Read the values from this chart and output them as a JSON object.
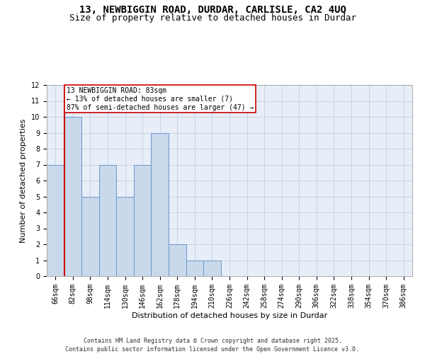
{
  "title_line1": "13, NEWBIGGIN ROAD, DURDAR, CARLISLE, CA2 4UQ",
  "title_line2": "Size of property relative to detached houses in Durdar",
  "xlabel": "Distribution of detached houses by size in Durdar",
  "ylabel": "Number of detached properties",
  "bin_labels": [
    "66sqm",
    "82sqm",
    "98sqm",
    "114sqm",
    "130sqm",
    "146sqm",
    "162sqm",
    "178sqm",
    "194sqm",
    "210sqm",
    "226sqm",
    "242sqm",
    "258sqm",
    "274sqm",
    "290sqm",
    "306sqm",
    "322sqm",
    "338sqm",
    "354sqm",
    "370sqm",
    "386sqm"
  ],
  "bin_values": [
    7,
    10,
    5,
    7,
    5,
    7,
    9,
    2,
    1,
    1,
    0,
    0,
    0,
    0,
    0,
    0,
    0,
    0,
    0,
    0,
    0
  ],
  "bar_color": "#c9d9ec",
  "bar_edge_color": "#6896c8",
  "grid_color": "#c8d4e8",
  "background_color": "#e8eef8",
  "subject_line_color": "#cc0000",
  "annotation_text": "13 NEWBIGGIN ROAD: 83sqm\n← 13% of detached houses are smaller (7)\n87% of semi-detached houses are larger (47) →",
  "annotation_box_color": "#cc0000",
  "ylim": [
    0,
    12
  ],
  "yticks": [
    0,
    1,
    2,
    3,
    4,
    5,
    6,
    7,
    8,
    9,
    10,
    11,
    12
  ],
  "footer_text": "Contains HM Land Registry data © Crown copyright and database right 2025.\nContains public sector information licensed under the Open Government Licence v3.0.",
  "title_fontsize": 10,
  "subtitle_fontsize": 9,
  "axis_label_fontsize": 8,
  "tick_fontsize": 7,
  "annotation_fontsize": 7,
  "footer_fontsize": 6
}
